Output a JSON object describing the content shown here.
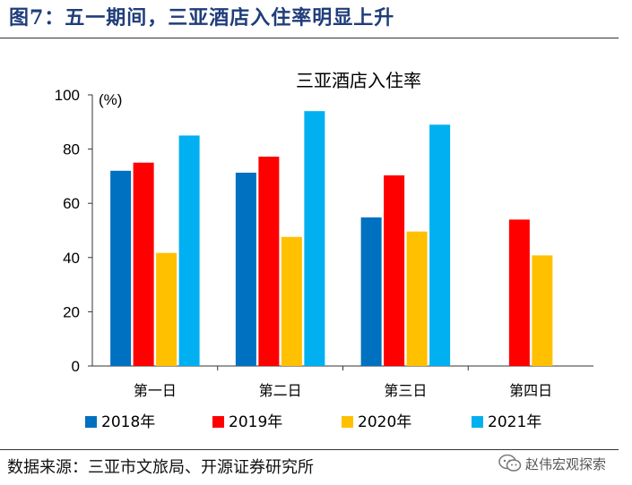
{
  "figure_title": "图7：五一期间，三亚酒店入住率明显上升",
  "source_note": "数据来源：三亚市文旅局、开源证券研究所",
  "watermark": {
    "text": "赵伟宏观探索",
    "icon": "wechat-icon"
  },
  "chart_data": {
    "type": "bar",
    "title": "三亚酒店入住率",
    "ylabel": "(%)",
    "xlabel": "",
    "ylim": [
      0,
      100
    ],
    "yticks": [
      0,
      20,
      40,
      60,
      80,
      100
    ],
    "categories": [
      "第一日",
      "第二日",
      "第三日",
      "第四日"
    ],
    "series": [
      {
        "name": "2018年",
        "color": "#0070C0",
        "values": [
          72,
          71.3,
          54.8,
          null
        ]
      },
      {
        "name": "2019年",
        "color": "#FF0000",
        "values": [
          75,
          77.2,
          70.3,
          54
        ]
      },
      {
        "name": "2020年",
        "color": "#FFC000",
        "values": [
          41.7,
          47.6,
          49.6,
          40.8
        ]
      },
      {
        "name": "2021年",
        "color": "#00B0F0",
        "values": [
          85,
          94,
          89,
          null
        ]
      }
    ],
    "legend_position": "bottom",
    "grid": false
  }
}
